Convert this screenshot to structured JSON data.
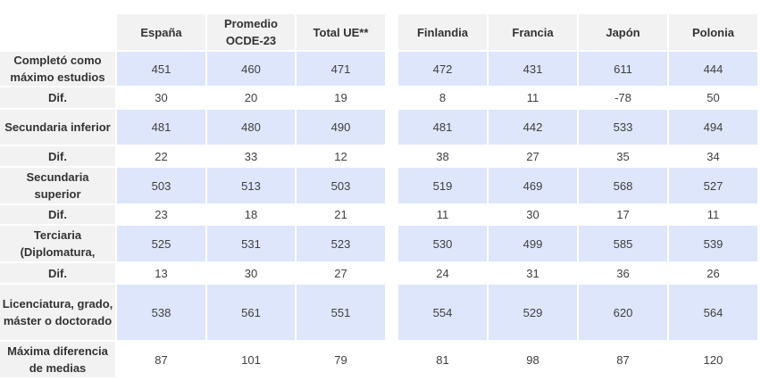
{
  "chart_data": {
    "type": "table",
    "columns": [
      "España",
      "Promedio OCDE-23",
      "Total UE**",
      "Finlandia",
      "Francia",
      "Japón",
      "Polonia"
    ],
    "rows": [
      {
        "label": "Completó como máximo estudios",
        "values": [
          451,
          460,
          471,
          472,
          431,
          611,
          444
        ]
      },
      {
        "label": "Dif.",
        "values": [
          30,
          20,
          19,
          8,
          11,
          -78,
          50
        ]
      },
      {
        "label": "Secundaria inferior",
        "values": [
          481,
          480,
          490,
          481,
          442,
          533,
          494
        ]
      },
      {
        "label": "Dif.",
        "values": [
          22,
          33,
          12,
          38,
          27,
          35,
          34
        ]
      },
      {
        "label": "Secundaria superior",
        "values": [
          503,
          513,
          503,
          519,
          469,
          568,
          527
        ]
      },
      {
        "label": "Dif.",
        "values": [
          23,
          18,
          21,
          11,
          30,
          17,
          11
        ]
      },
      {
        "label": "Terciaria (Diplomatura,",
        "values": [
          525,
          531,
          523,
          530,
          499,
          585,
          539
        ]
      },
      {
        "label": "Dif.",
        "values": [
          13,
          30,
          27,
          24,
          31,
          36,
          26
        ]
      },
      {
        "label": "Licenciatura, grado, máster o doctorado",
        "values": [
          538,
          561,
          551,
          554,
          529,
          620,
          564
        ]
      },
      {
        "label": "Máxima diferencia de medias",
        "values": [
          87,
          101,
          79,
          81,
          98,
          87,
          120
        ]
      }
    ]
  }
}
